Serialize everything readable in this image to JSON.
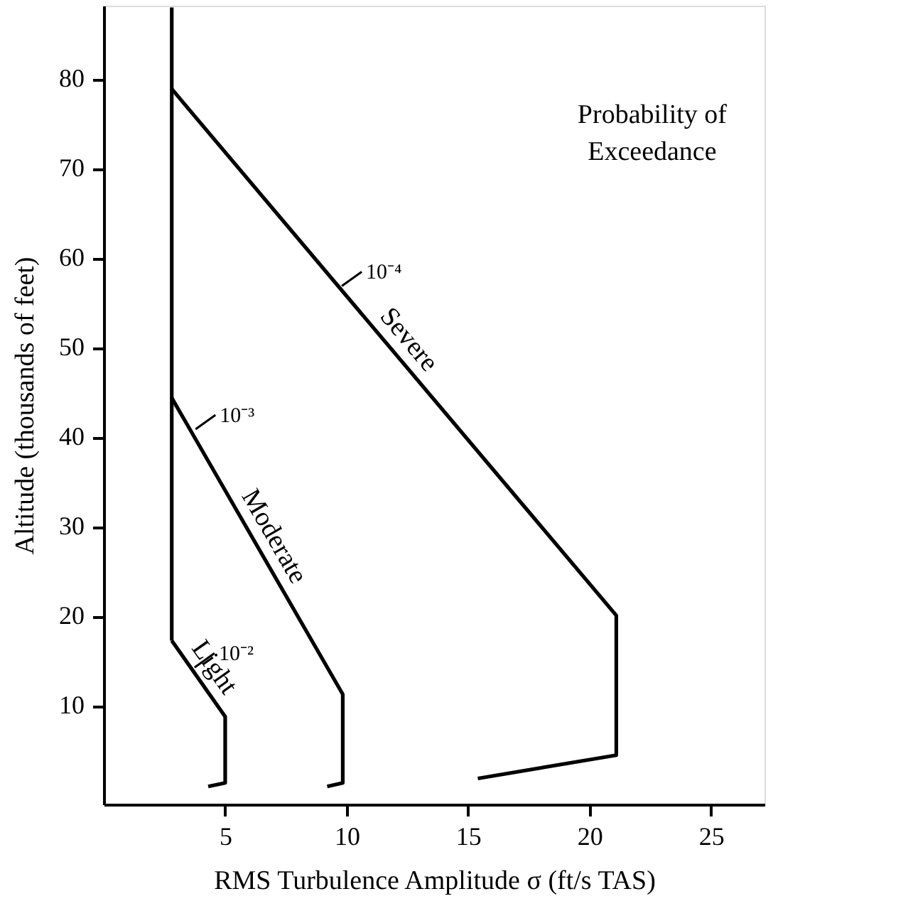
{
  "chart_data": {
    "type": "line",
    "xlabel": "RMS Turbulence Amplitude σ (ft/s TAS)",
    "ylabel": "Altitude (thousands of feet)",
    "xlim": [
      0,
      27.2
    ],
    "ylim": [
      -1,
      88.2
    ],
    "xticks": [
      5,
      10,
      15,
      20,
      25
    ],
    "yticks": [
      10,
      20,
      30,
      40,
      50,
      60,
      70,
      80
    ],
    "grid": false,
    "marker": "none",
    "line_style": "solid",
    "series": [
      {
        "color": "#000000",
        "x": [
          2.8,
          2.8
        ],
        "values": [
          17.3,
          88
        ]
      },
      {
        "name": "Light",
        "color": "#000000",
        "x": [
          2.8,
          5.0,
          5.0,
          4.3
        ],
        "values": [
          17.3,
          8.8,
          1.4,
          1.0
        ]
      },
      {
        "name": "Moderate",
        "color": "#000000",
        "x": [
          2.8,
          9.84,
          9.84,
          9.2
        ],
        "values": [
          44.4,
          11.3,
          1.4,
          1.0
        ]
      },
      {
        "name": "Severe",
        "color": "#000000",
        "x": [
          2.8,
          21.1,
          21.1,
          15.4
        ],
        "values": [
          78.9,
          20.1,
          4.5,
          1.9
        ]
      }
    ],
    "annotations": [
      {
        "text": "10⁻²",
        "x": 3.74,
        "y": 14.3
      },
      {
        "text": "10⁻³",
        "x": 3.78,
        "y": 40.9
      },
      {
        "text": "10⁻⁴",
        "x": 9.8,
        "y": 56.9
      },
      "Probability of\nExceedance"
    ]
  }
}
